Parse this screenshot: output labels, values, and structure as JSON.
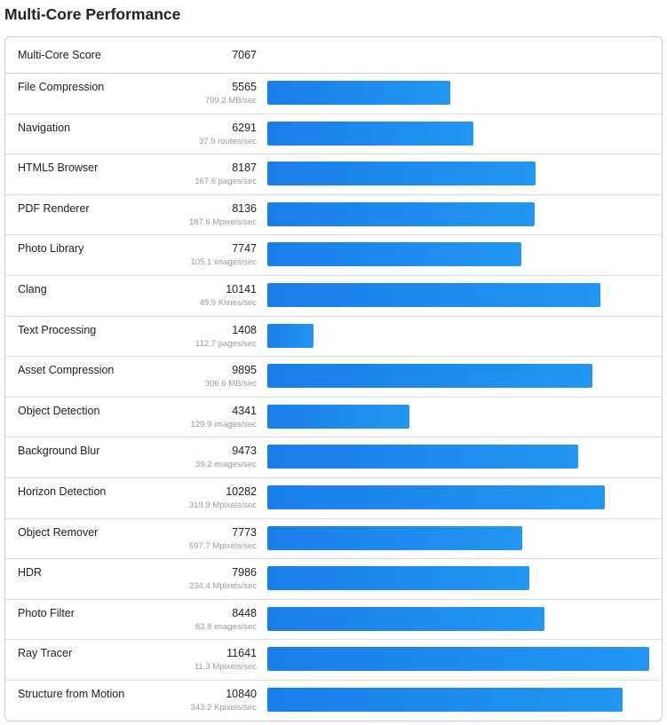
{
  "title": "Multi-Core Performance",
  "summary": {
    "label": "Multi-Core Score",
    "score": "7067"
  },
  "max_score": 11641,
  "bar_color": "#1f8cef",
  "rows": [
    {
      "name": "File Compression",
      "score": 5565,
      "rate": "799.2 MB/sec"
    },
    {
      "name": "Navigation",
      "score": 6291,
      "rate": "37.9 routes/sec"
    },
    {
      "name": "HTML5 Browser",
      "score": 8187,
      "rate": "167.6 pages/sec"
    },
    {
      "name": "PDF Renderer",
      "score": 8136,
      "rate": "187.6 Mpixels/sec"
    },
    {
      "name": "Photo Library",
      "score": 7747,
      "rate": "105.1 images/sec"
    },
    {
      "name": "Clang",
      "score": 10141,
      "rate": "49.9 Klines/sec"
    },
    {
      "name": "Text Processing",
      "score": 1408,
      "rate": "112.7 pages/sec"
    },
    {
      "name": "Asset Compression",
      "score": 9895,
      "rate": "306.6 MB/sec"
    },
    {
      "name": "Object Detection",
      "score": 4341,
      "rate": "129.9 images/sec"
    },
    {
      "name": "Background Blur",
      "score": 9473,
      "rate": "39.2 images/sec"
    },
    {
      "name": "Horizon Detection",
      "score": 10282,
      "rate": "319.9 Mpixels/sec"
    },
    {
      "name": "Object Remover",
      "score": 7773,
      "rate": "597.7 Mpixels/sec"
    },
    {
      "name": "HDR",
      "score": 7986,
      "rate": "234.4 Mpixels/sec"
    },
    {
      "name": "Photo Filter",
      "score": 8448,
      "rate": "83.8 images/sec"
    },
    {
      "name": "Ray Tracer",
      "score": 11641,
      "rate": "11.3 Mpixels/sec"
    },
    {
      "name": "Structure from Motion",
      "score": 10840,
      "rate": "343.2 Kpixels/sec"
    }
  ]
}
